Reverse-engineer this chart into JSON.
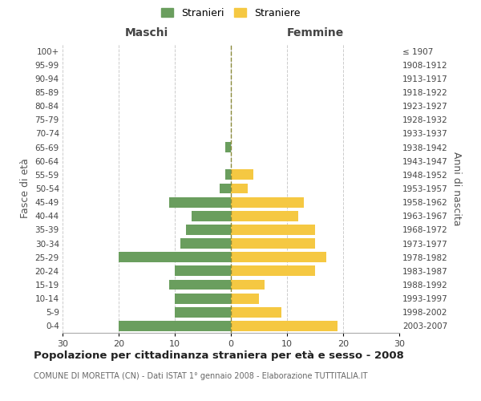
{
  "age_groups": [
    "0-4",
    "5-9",
    "10-14",
    "15-19",
    "20-24",
    "25-29",
    "30-34",
    "35-39",
    "40-44",
    "45-49",
    "50-54",
    "55-59",
    "60-64",
    "65-69",
    "70-74",
    "75-79",
    "80-84",
    "85-89",
    "90-94",
    "95-99",
    "100+"
  ],
  "birth_years": [
    "2003-2007",
    "1998-2002",
    "1993-1997",
    "1988-1992",
    "1983-1987",
    "1978-1982",
    "1973-1977",
    "1968-1972",
    "1963-1967",
    "1958-1962",
    "1953-1957",
    "1948-1952",
    "1943-1947",
    "1938-1942",
    "1933-1937",
    "1928-1932",
    "1923-1927",
    "1918-1922",
    "1913-1917",
    "1908-1912",
    "≤ 1907"
  ],
  "males": [
    20,
    10,
    10,
    11,
    10,
    20,
    9,
    8,
    7,
    11,
    2,
    1,
    0,
    1,
    0,
    0,
    0,
    0,
    0,
    0,
    0
  ],
  "females": [
    19,
    9,
    5,
    6,
    15,
    17,
    15,
    15,
    12,
    13,
    3,
    4,
    0,
    0,
    0,
    0,
    0,
    0,
    0,
    0,
    0
  ],
  "male_color": "#6a9e5e",
  "female_color": "#f5c842",
  "grid_color": "#cccccc",
  "dashed_line_color": "#8a8a3a",
  "bg_color": "#ffffff",
  "xlim": 30,
  "title": "Popolazione per cittadinanza straniera per età e sesso - 2008",
  "subtitle": "COMUNE DI MORETTA (CN) - Dati ISTAT 1° gennaio 2008 - Elaborazione TUTTITALIA.IT",
  "xlabel_left": "Maschi",
  "xlabel_right": "Femmine",
  "ylabel_left": "Fasce di età",
  "ylabel_right": "Anni di nascita",
  "legend_stranieri": "Stranieri",
  "legend_straniere": "Straniere"
}
